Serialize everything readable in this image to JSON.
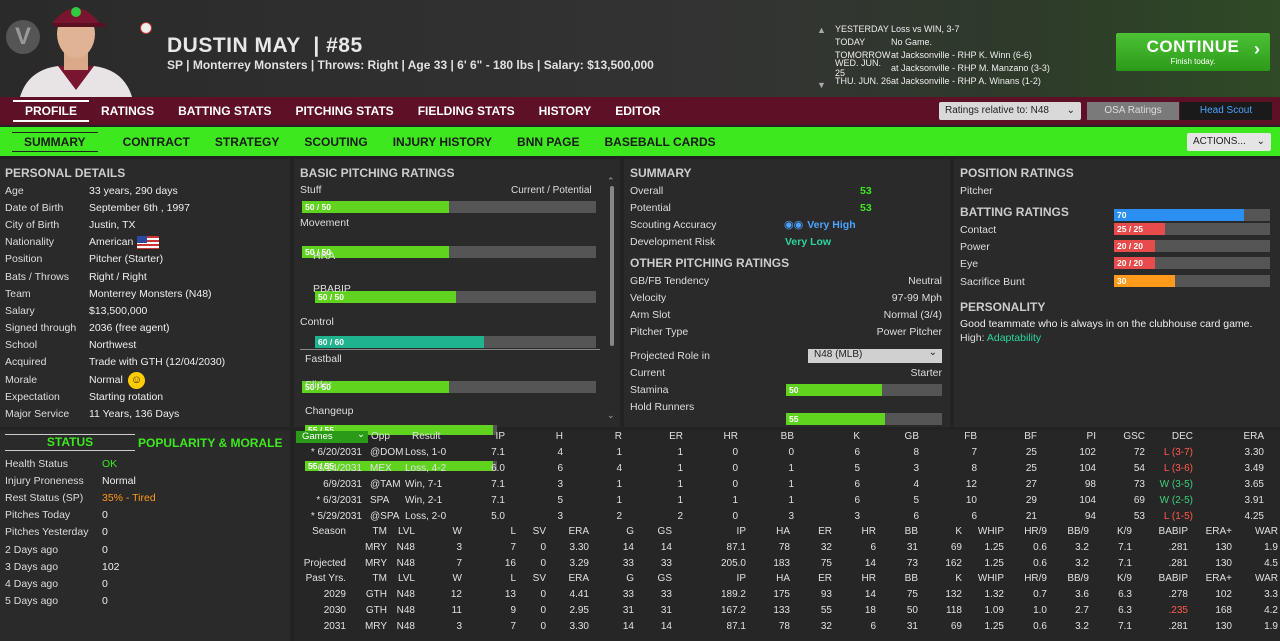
{
  "player": {
    "name": "DUSTIN MAY",
    "number": "| #85",
    "info": "SP | Monterrey Monsters  |  Throws: Right  |  Age 33  |  6' 6\" - 180 lbs  |  Salary: $13,500,000"
  },
  "schedule": [
    {
      "day": "YESTERDAY",
      "event": "Loss vs WIN, 3-7"
    },
    {
      "day": "TODAY",
      "event": "No Game."
    },
    {
      "day": "TOMORROW",
      "event": "at Jacksonville - RHP K. Winn (6-6)"
    },
    {
      "day": "WED. JUN. 25",
      "event": "at Jacksonville - RHP M. Manzano (3-3)"
    },
    {
      "day": "THU. JUN. 26",
      "event": "at Jacksonville - RHP A. Winans (1-2)"
    }
  ],
  "continue": {
    "label": "CONTINUE",
    "sub": "Finish today."
  },
  "nav1": [
    "PROFILE",
    "RATINGS",
    "BATTING STATS",
    "PITCHING STATS",
    "FIELDING STATS",
    "HISTORY",
    "EDITOR"
  ],
  "ratings_select": "Ratings relative to: N48",
  "osa_label": "OSA Ratings",
  "head_scout_label": "Head Scout",
  "nav2": [
    "SUMMARY",
    "CONTRACT",
    "STRATEGY",
    "SCOUTING",
    "INJURY HISTORY",
    "BNN PAGE",
    "BASEBALL CARDS"
  ],
  "actions_label": "ACTIONS...",
  "personal": {
    "title": "PERSONAL DETAILS",
    "rows": [
      [
        "Age",
        "33 years, 290 days"
      ],
      [
        "Date of Birth",
        "September 6th , 1997"
      ],
      [
        "City of Birth",
        "Justin, TX"
      ],
      [
        "Nationality",
        "American"
      ],
      [
        "Position",
        "Pitcher (Starter)"
      ],
      [
        "Bats / Throws",
        "Right / Right"
      ],
      [
        "Team",
        "Monterrey Monsters (N48)"
      ],
      [
        "Salary",
        "$13,500,000"
      ],
      [
        "Signed through",
        "2036 (free agent)"
      ],
      [
        "School",
        "Northwest"
      ],
      [
        "Acquired",
        "Trade with GTH (12/04/2030)"
      ],
      [
        "Morale",
        "Normal"
      ],
      [
        "Expectation",
        "Starting rotation"
      ],
      [
        "Major Service",
        "11 Years, 136 Days"
      ]
    ]
  },
  "status_tabs": [
    "STATUS",
    "POPULARITY & MORALE"
  ],
  "status": [
    [
      "Health Status",
      "OK"
    ],
    [
      "Injury Proneness",
      "Normal"
    ],
    [
      "Rest Status (SP)",
      "35% - Tired"
    ],
    [
      "Pitches Today",
      "0"
    ],
    [
      "Pitches Yesterday",
      "0"
    ],
    [
      "2 Days ago",
      "0"
    ],
    [
      "3 Days ago",
      "102"
    ],
    [
      "4 Days ago",
      "0"
    ],
    [
      "5 Days ago",
      "0"
    ]
  ],
  "basic": {
    "title": "BASIC PITCHING RATINGS",
    "cp": "Current / Potential",
    "items": [
      {
        "label": "Stuff",
        "val": "50 / 50",
        "pct": 50,
        "indent": 0,
        "color": "#5fd31e"
      },
      {
        "label": "Movement",
        "val": "50 / 50",
        "pct": 50,
        "indent": 0,
        "color": "#5fd31e"
      },
      {
        "label": "HRA",
        "val": "50 / 50",
        "pct": 50,
        "indent": 1,
        "color": "#5fd31e"
      },
      {
        "label": "PBABIP",
        "val": "60 / 60",
        "pct": 60,
        "indent": 1,
        "color": "#1fb38f"
      },
      {
        "label": "Control",
        "val": "50 / 50",
        "pct": 50,
        "indent": 0,
        "color": "#5fd31e"
      }
    ],
    "pitches": [
      {
        "label": "Fastball",
        "val": "55 / 55",
        "pct": 55
      },
      {
        "label": "Slider",
        "val": "55 / 55",
        "pct": 55
      },
      {
        "label": "Changeup",
        "val": "",
        "pct": 0
      }
    ]
  },
  "summary": {
    "title": "SUMMARY",
    "overall_l": "Overall",
    "overall": "53",
    "potential_l": "Potential",
    "potential": "53",
    "scout_l": "Scouting Accuracy",
    "scout": "Very High",
    "dev_l": "Development Risk",
    "dev": "Very Low"
  },
  "other": {
    "title": "OTHER PITCHING RATINGS",
    "rows": [
      [
        "GB/FB Tendency",
        "Neutral"
      ],
      [
        "Velocity",
        "97-99 Mph"
      ],
      [
        "Arm Slot",
        "Normal (3/4)"
      ],
      [
        "Pitcher Type",
        "Power Pitcher"
      ]
    ],
    "proj_l": "Projected Role in",
    "proj": "N48 (MLB)",
    "cur_l": "Current",
    "cur": "Starter",
    "stamina_l": "Stamina",
    "stamina": "50",
    "hold_l": "Hold Runners",
    "hold": "55"
  },
  "position": {
    "title": "POSITION RATINGS",
    "pitcher_l": "Pitcher",
    "pitcher": "70"
  },
  "batting": {
    "title": "BATTING RATINGS",
    "rows": [
      {
        "label": "Contact",
        "val": "25 / 25",
        "pct": 25,
        "color": "#e84b4b"
      },
      {
        "label": "Power",
        "val": "20 / 20",
        "pct": 20,
        "color": "#e84b4b"
      },
      {
        "label": "Eye",
        "val": "20 / 20",
        "pct": 20,
        "color": "#e84b4b"
      },
      {
        "label": "Sacrifice Bunt",
        "val": "30",
        "pct": 30,
        "color": "#ff9a1a"
      }
    ]
  },
  "personality": {
    "title": "PERSONALITY",
    "text": "Good teammate who is always in on the clubhouse card game.",
    "high_l": "High:",
    "high": "Adaptability"
  },
  "games": {
    "select": "Games",
    "headers": [
      "Opp",
      "Result",
      "IP",
      "H",
      "R",
      "ER",
      "HR",
      "BB",
      "K",
      "GB",
      "FB",
      "BF",
      "PI",
      "GSC",
      "DEC",
      "ERA"
    ],
    "rows": [
      [
        "* 6/20/2031",
        "@DOM",
        "Loss, 1-0",
        "7.1",
        "4",
        "1",
        "1",
        "0",
        "0",
        "6",
        "8",
        "7",
        "25",
        "102",
        "72",
        "L (3-7)",
        "3.30"
      ],
      [
        "* 6/14/2031",
        "MEX",
        "Loss, 4-2",
        "6.0",
        "6",
        "4",
        "1",
        "0",
        "1",
        "5",
        "3",
        "8",
        "25",
        "104",
        "54",
        "L (3-6)",
        "3.49"
      ],
      [
        "6/9/2031",
        "@TAM",
        "Win, 7-1",
        "7.1",
        "3",
        "1",
        "1",
        "0",
        "1",
        "6",
        "4",
        "12",
        "27",
        "98",
        "73",
        "W (3-5)",
        "3.65"
      ],
      [
        "* 6/3/2031",
        "SPA",
        "Win, 2-1",
        "7.1",
        "5",
        "1",
        "1",
        "1",
        "1",
        "6",
        "5",
        "10",
        "29",
        "104",
        "69",
        "W (2-5)",
        "3.91"
      ],
      [
        "* 5/29/2031",
        "@SPA",
        "Loss, 2-0",
        "5.0",
        "3",
        "2",
        "2",
        "0",
        "3",
        "3",
        "6",
        "6",
        "21",
        "94",
        "53",
        "L (1-5)",
        "4.25"
      ]
    ]
  },
  "season": {
    "headers": [
      "Season",
      "TM",
      "LVL",
      "W",
      "L",
      "SV",
      "ERA",
      "G",
      "GS",
      "IP",
      "HA",
      "ER",
      "HR",
      "BB",
      "K",
      "WHIP",
      "HR/9",
      "BB/9",
      "K/9",
      "BABIP",
      "ERA+",
      "WAR"
    ],
    "rows": [
      [
        "",
        "MRY",
        "N48",
        "3",
        "7",
        "0",
        "3.30",
        "14",
        "14",
        "87.1",
        "78",
        "32",
        "6",
        "31",
        "69",
        "1.25",
        "0.6",
        "3.2",
        "7.1",
        ".281",
        "130",
        "1.9"
      ],
      [
        "Projected",
        "MRY",
        "N48",
        "7",
        "16",
        "0",
        "3.29",
        "33",
        "33",
        "205.0",
        "183",
        "75",
        "14",
        "73",
        "162",
        "1.25",
        "0.6",
        "3.2",
        "7.1",
        ".281",
        "130",
        "4.5"
      ]
    ]
  },
  "past": {
    "headers": [
      "Past Yrs.",
      "TM",
      "LVL",
      "W",
      "L",
      "SV",
      "ERA",
      "G",
      "GS",
      "IP",
      "HA",
      "ER",
      "HR",
      "BB",
      "K",
      "WHIP",
      "HR/9",
      "BB/9",
      "K/9",
      "BABIP",
      "ERA+",
      "WAR"
    ],
    "rows": [
      [
        "2029",
        "GTH",
        "N48",
        "12",
        "13",
        "0",
        "4.41",
        "33",
        "33",
        "189.2",
        "175",
        "93",
        "14",
        "75",
        "132",
        "1.32",
        "0.7",
        "3.6",
        "6.3",
        ".278",
        "102",
        "3.3"
      ],
      [
        "2030",
        "GTH",
        "N48",
        "11",
        "9",
        "0",
        "2.95",
        "31",
        "31",
        "167.2",
        "133",
        "55",
        "18",
        "50",
        "118",
        "1.09",
        "1.0",
        "2.7",
        "6.3",
        ".235",
        "168",
        "4.2"
      ],
      [
        "2031",
        "MRY",
        "N48",
        "3",
        "7",
        "0",
        "3.30",
        "14",
        "14",
        "87.1",
        "78",
        "32",
        "6",
        "31",
        "69",
        "1.25",
        "0.6",
        "3.2",
        "7.1",
        ".281",
        "130",
        "1.9"
      ]
    ]
  },
  "colors": {
    "green": "#3ee81f",
    "maroon": "#5e1026",
    "win": "#3fd07a",
    "loss": "#ff5a4a",
    "orange": "#ff9a1a",
    "teal": "#2bd5a0"
  }
}
